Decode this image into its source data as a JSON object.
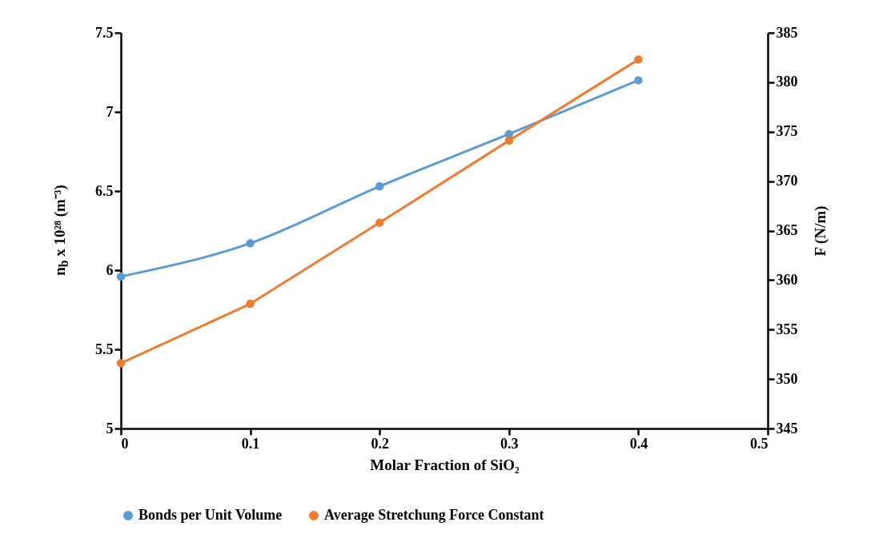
{
  "chart_data": {
    "type": "line",
    "xlabel": "Molar Fraction of SiO₂",
    "ylabel": "n$_{b}$ x 10²⁸ (m⁻³)",
    "y2label": "F (N/m)",
    "x": [
      0,
      0.1,
      0.2,
      0.3,
      0.4
    ],
    "series": [
      {
        "name": "Bonds per Unit Volume",
        "color": "#5b9bd5",
        "values": [
          5.96,
          6.17,
          6.53,
          6.86,
          7.2
        ]
      },
      {
        "name": "Average Stretchung Force Constant",
        "color": "#ed7d31",
        "axis": "y2",
        "values": [
          351.6,
          357.6,
          365.8,
          374.1,
          382.3
        ]
      }
    ],
    "xlim": [
      0,
      0.5
    ],
    "xticks": [
      0,
      0.1,
      0.2,
      0.3,
      0.4,
      0.5
    ],
    "ylim": [
      5,
      7.5
    ],
    "yticks": [
      5,
      5.5,
      6,
      6.5,
      7,
      7.5
    ],
    "y2lim": [
      345,
      385
    ],
    "y2ticks": [
      345,
      350,
      355,
      360,
      365,
      370,
      375,
      380,
      385
    ],
    "grid": false,
    "legend": "bottom",
    "marker": "circle",
    "line_style": "solid"
  }
}
